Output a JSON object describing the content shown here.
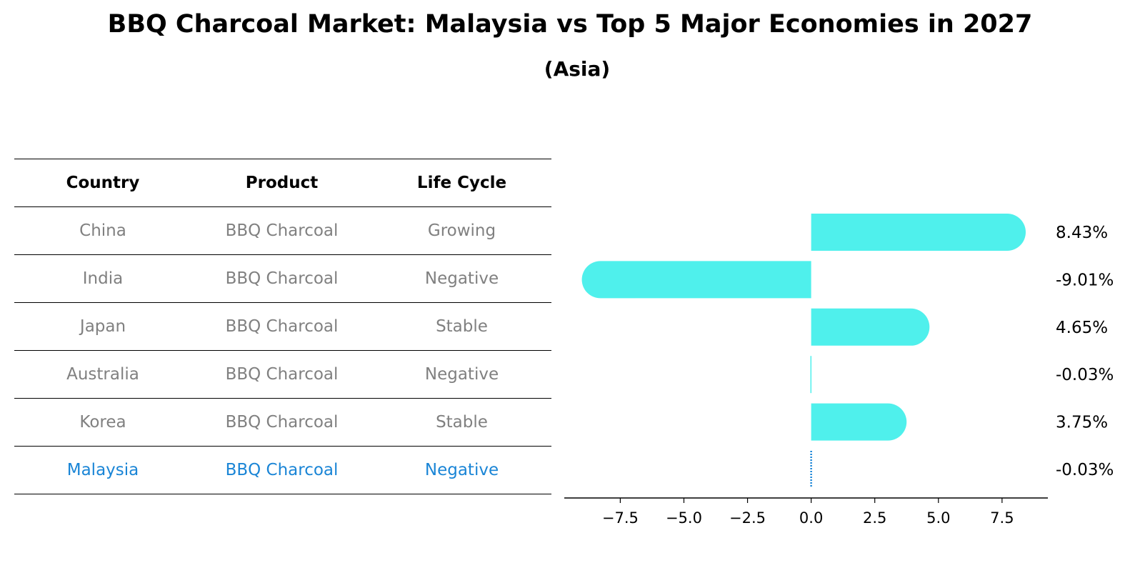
{
  "title": "BBQ Charcoal Market: Malaysia vs Top 5 Major Economies in 2027",
  "subtitle": "(Asia)",
  "table": {
    "headers": [
      "Country",
      "Product",
      "Life Cycle"
    ],
    "rows": [
      {
        "country": "China",
        "product": "BBQ Charcoal",
        "life_cycle": "Growing"
      },
      {
        "country": "India",
        "product": "BBQ Charcoal",
        "life_cycle": "Negative"
      },
      {
        "country": "Japan",
        "product": "BBQ Charcoal",
        "life_cycle": "Stable"
      },
      {
        "country": "Australia",
        "product": "BBQ Charcoal",
        "life_cycle": "Negative"
      },
      {
        "country": "Korea",
        "product": "BBQ Charcoal",
        "life_cycle": "Stable"
      },
      {
        "country": "Malaysia",
        "product": "BBQ Charcoal",
        "life_cycle": "Negative"
      }
    ]
  },
  "colors": {
    "bar": "#4ff0ec",
    "highlight": "#1a85d6",
    "muted": "#808080"
  },
  "chart_data": {
    "type": "bar",
    "orientation": "horizontal",
    "categories": [
      "China",
      "India",
      "Japan",
      "Australia",
      "Korea",
      "Malaysia"
    ],
    "values": [
      8.43,
      -9.01,
      4.65,
      -0.03,
      3.75,
      -0.03
    ],
    "labels": [
      "8.43%",
      "-9.01%",
      "4.65%",
      "-0.03%",
      "3.75%",
      "-0.03%"
    ],
    "highlight": "Malaysia",
    "xlim": [
      -9.7,
      9.3
    ],
    "xticks": [
      -7.5,
      -5.0,
      -2.5,
      0.0,
      2.5,
      5.0,
      7.5
    ],
    "xtick_labels": [
      "−7.5",
      "−5.0",
      "−2.5",
      "0.0",
      "2.5",
      "5.0",
      "7.5"
    ],
    "title": "",
    "xlabel": "",
    "ylabel": "",
    "grid": false
  }
}
